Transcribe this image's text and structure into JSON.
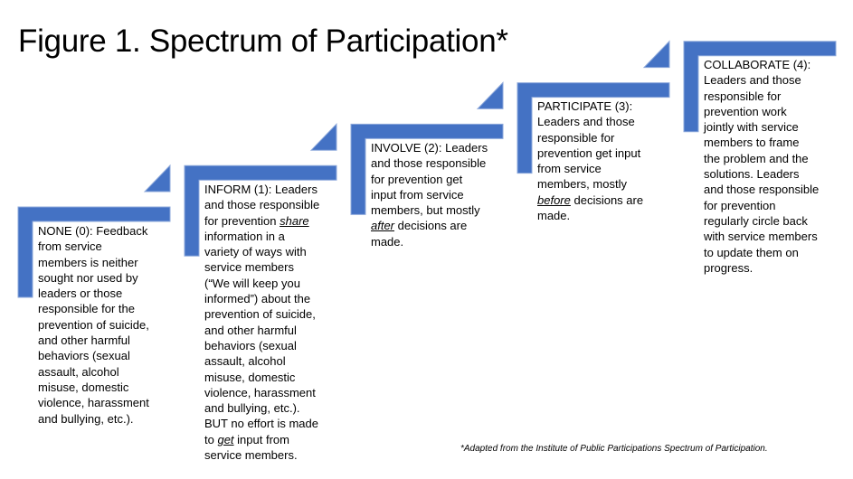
{
  "title": "Figure 1. Spectrum of Participation*",
  "colors": {
    "step_fill": "#4472C4",
    "step_edge": "#8EA9DB"
  },
  "steps": [
    {
      "level": "NONE (0)",
      "emphasis": "",
      "lines": [
        "NONE (0): Feedback",
        "from service",
        "members is neither",
        "sought nor used by",
        "leaders or those",
        "responsible for the",
        "prevention of suicide,",
        "and other harmful",
        "behaviors (sexual",
        "assault, alcohol",
        "misuse, domestic",
        "violence, harassment",
        "and bullying, etc.)."
      ]
    },
    {
      "level": "INFORM (1)",
      "emphasis": "share|get",
      "lines": [
        "INFORM (1): Leaders",
        "and those responsible",
        "for prevention share",
        "information in a",
        "variety of ways with",
        "service members",
        "(“We will keep you",
        "informed”) about the",
        "prevention of suicide,",
        "and other harmful",
        "behaviors (sexual",
        "assault, alcohol",
        "misuse, domestic",
        "violence, harassment",
        "and bullying, etc.).",
        "BUT no effort is made",
        "to get input from",
        "service members."
      ]
    },
    {
      "level": "INVOLVE (2)",
      "emphasis": "after",
      "lines": [
        "INVOLVE (2): Leaders",
        "and those responsible",
        "for prevention get",
        "input from service",
        "members, but mostly",
        "after decisions are",
        "made."
      ]
    },
    {
      "level": "PARTICIPATE (3)",
      "emphasis": "before",
      "lines": [
        "PARTICIPATE (3):",
        "Leaders and those",
        "responsible for",
        "prevention get input",
        "from service",
        "members, mostly",
        "before decisions are",
        "made."
      ]
    },
    {
      "level": "COLLABORATE (4)",
      "emphasis": "",
      "lines": [
        "COLLABORATE (4):",
        "Leaders and those",
        "responsible for",
        "prevention work",
        "jointly with service",
        "members to frame",
        "the problem and the",
        "solutions. Leaders",
        "and those responsible",
        "for prevention",
        "regularly circle back",
        "with service members",
        "to update them on",
        "progress."
      ]
    }
  ],
  "footnote": "*Adapted from the Institute of Public Participations Spectrum of Participation."
}
